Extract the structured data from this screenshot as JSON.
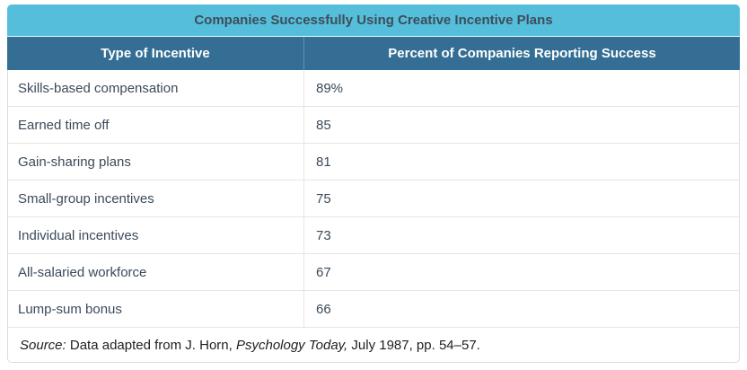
{
  "title": "Companies Successfully Using Creative Incentive Plans",
  "header": {
    "col1": "Type of Incentive",
    "col2": "Percent of Companies Reporting Success"
  },
  "rows": [
    {
      "type": "Skills-based compensation",
      "value": "89%"
    },
    {
      "type": "Earned time off",
      "value": "85"
    },
    {
      "type": "Gain-sharing plans",
      "value": "81"
    },
    {
      "type": "Small-group incentives",
      "value": "75"
    },
    {
      "type": "Individual incentives",
      "value": "73"
    },
    {
      "type": "All-salaried workforce",
      "value": "67"
    },
    {
      "type": "Lump-sum bonus",
      "value": "66"
    }
  ],
  "source": {
    "label": "Source:",
    "segment1": " Data adapted from J. Horn, ",
    "journal": "Psychology Today,",
    "segment2": " July 1987, pp. 54–57."
  },
  "colors": {
    "title_bar_bg": "#55BFDB",
    "title_text": "#3E4C5B",
    "header_bg": "#346E94",
    "header_text": "#FFFFFF",
    "header_divider": "#6391AD",
    "body_text": "#3B4A5B",
    "row_border": "#E5E5E5",
    "outer_border": "#DCDCDC",
    "source_text": "#1F1F1F"
  },
  "chart_data": {
    "type": "table",
    "title": "Companies Successfully Using Creative Incentive Plans",
    "columns": [
      "Type of Incentive",
      "Percent of Companies Reporting Success"
    ],
    "categories": [
      "Skills-based compensation",
      "Earned time off",
      "Gain-sharing plans",
      "Small-group incentives",
      "Individual incentives",
      "All-salaried workforce",
      "Lump-sum bonus"
    ],
    "values": [
      89,
      85,
      81,
      75,
      73,
      67,
      66
    ],
    "value_unit": "percent",
    "source_note": "Source: Data adapted from J. Horn, Psychology Today, July 1987, pp. 54–57."
  }
}
